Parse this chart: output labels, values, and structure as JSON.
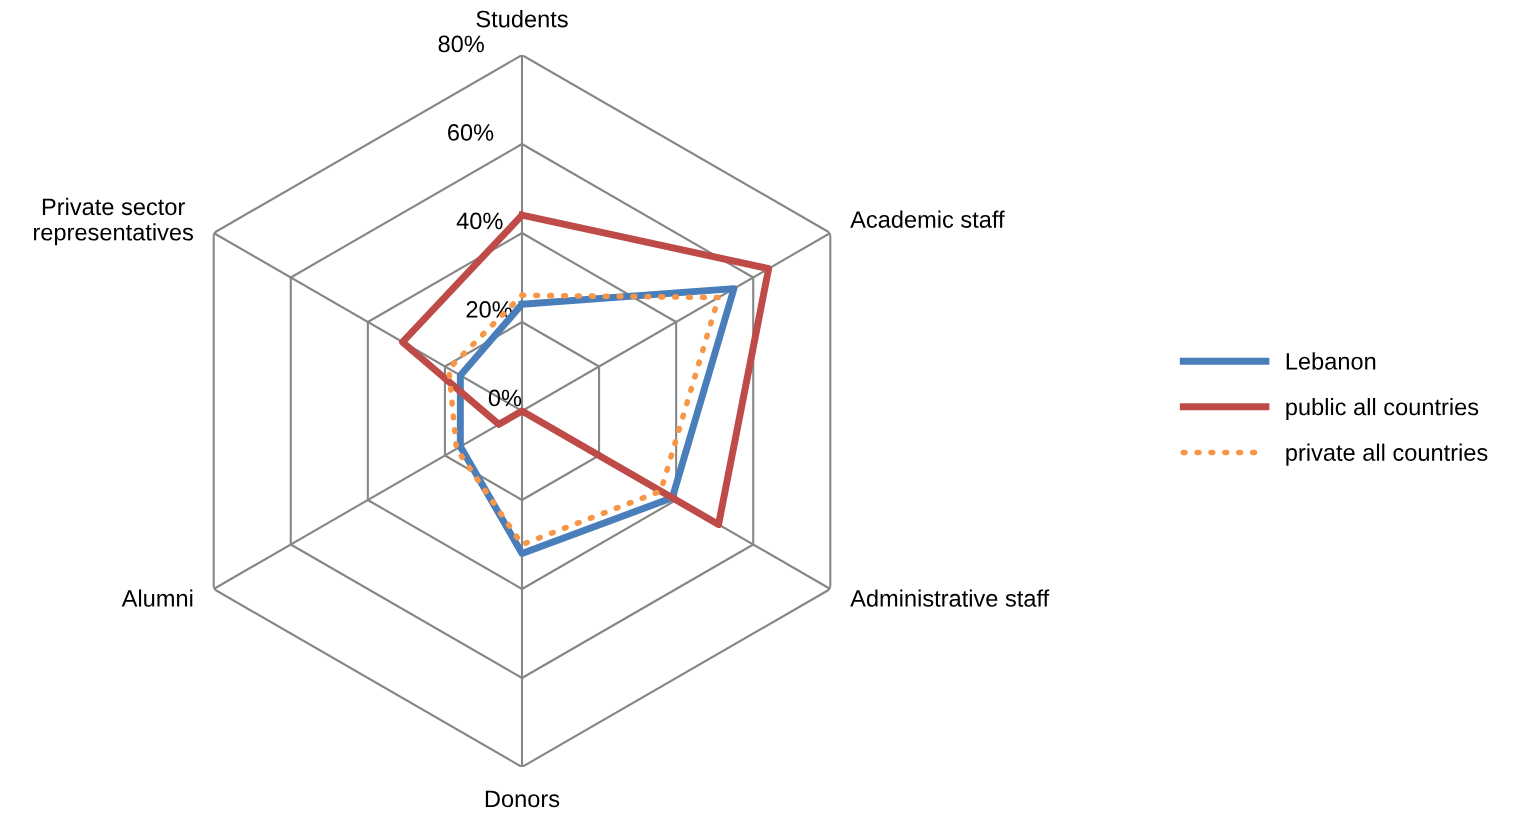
{
  "chart_data": {
    "type": "radar",
    "categories": [
      "Students",
      "Academic staff",
      "Administrative staff",
      "Donors",
      "Alumni",
      "Private sector representatives"
    ],
    "ylim": [
      0,
      80
    ],
    "yticks": [
      {
        "value": 0,
        "label": "0%"
      },
      {
        "value": 20,
        "label": "20%"
      },
      {
        "value": 40,
        "label": "40%"
      },
      {
        "value": 60,
        "label": "60%"
      },
      {
        "value": 80,
        "label": "80%"
      }
    ],
    "grid": true,
    "legend": "right",
    "series": [
      {
        "name": "Lebanon",
        "color": "#4a7ebb",
        "line_style": "solid",
        "values": [
          24,
          55,
          39,
          32,
          16,
          16
        ]
      },
      {
        "name": "public all countries",
        "color": "#be4b48",
        "line_style": "solid",
        "values": [
          44,
          64,
          51,
          0,
          6,
          31
        ]
      },
      {
        "name": "private all countries",
        "color": "#f79646",
        "line_style": "dotted",
        "values": [
          26,
          51,
          36,
          30,
          17,
          19
        ]
      }
    ]
  }
}
